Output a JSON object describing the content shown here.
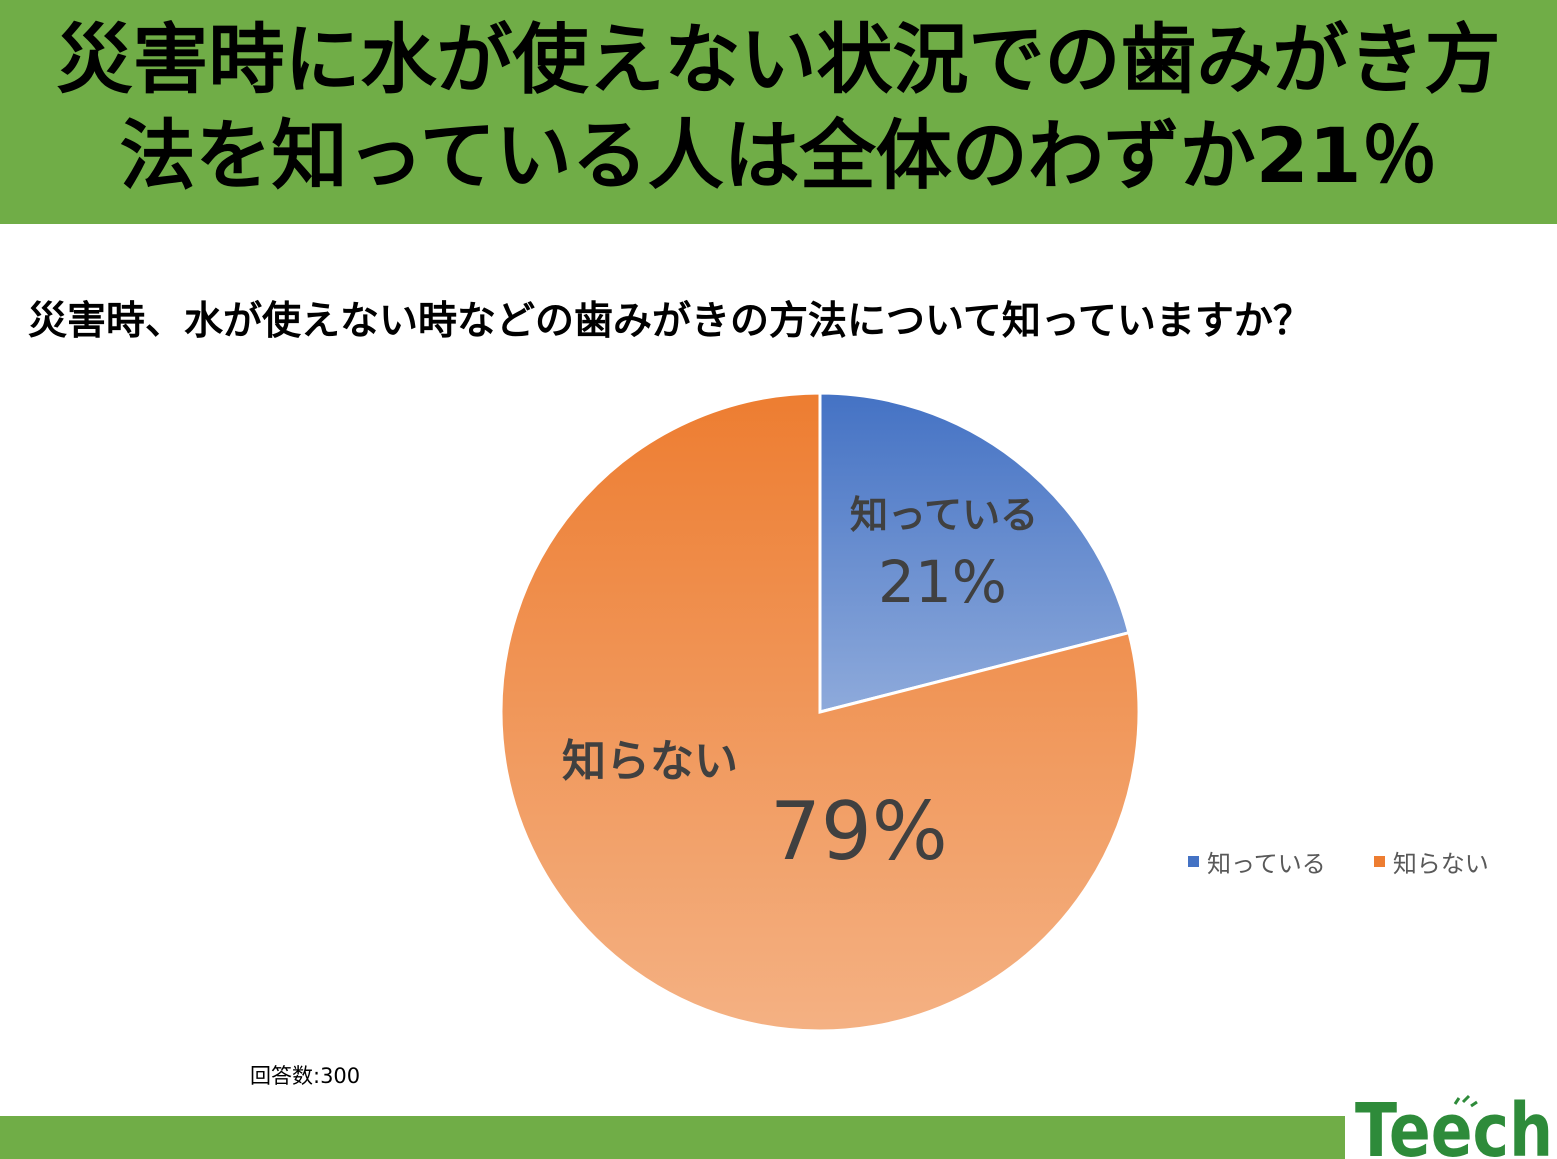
{
  "headline": {
    "line1": "災害時に水が使えない状況での歯みがき方",
    "line2": "法を知っている人は全体のわずか21％"
  },
  "question": "災害時、水が使えない時などの歯みがきの方法について知っていますか？",
  "respondents": "回答数:300",
  "logo": {
    "text": "Teech"
  },
  "colors": {
    "band": "#70ad47",
    "known_top": "#4472c4",
    "known_bottom": "#8eaadb",
    "unknown_top": "#ed7d31",
    "unknown_bottom": "#f4b183"
  },
  "chart_data": {
    "type": "pie",
    "title": "災害時、水が使えない時などの歯みがきの方法について知っていますか？",
    "slices": [
      {
        "label": "知っている",
        "value": 21,
        "display": "21%",
        "color": "#4472c4"
      },
      {
        "label": "知らない",
        "value": 79,
        "display": "79%",
        "color": "#ed7d31"
      }
    ],
    "legend": [
      "知っている",
      "知らない"
    ],
    "legend_position": "right"
  }
}
